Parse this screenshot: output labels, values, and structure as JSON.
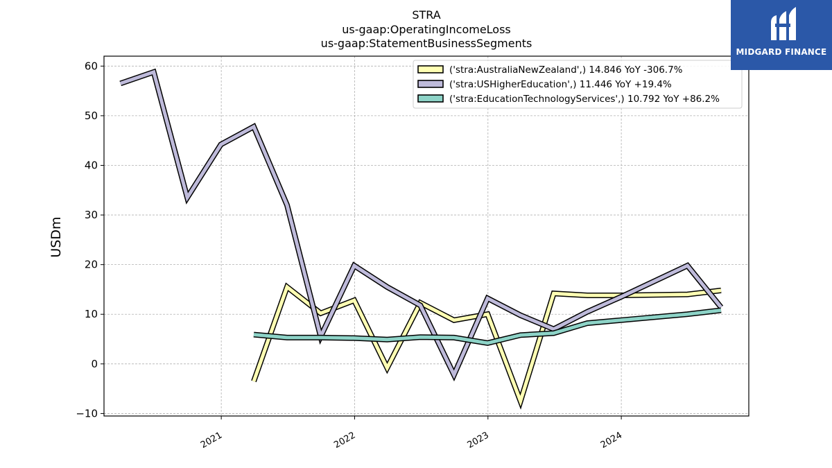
{
  "chart_data": {
    "type": "line",
    "title": [
      "STRA",
      "us-gaap:OperatingIncomeLoss",
      "us-gaap:StatementBusinessSegments"
    ],
    "ylabel": "USDm",
    "xlabel": "",
    "ylim": [
      -10.5,
      62
    ],
    "yticks": [
      -10,
      0,
      10,
      20,
      30,
      40,
      50,
      60
    ],
    "xlim": [
      "2020-02-15",
      "2024-12-15"
    ],
    "xticks": [
      {
        "date": "2021-01-01",
        "label": "2021"
      },
      {
        "date": "2022-01-01",
        "label": "2022"
      },
      {
        "date": "2023-01-01",
        "label": "2023"
      },
      {
        "date": "2024-01-01",
        "label": "2024"
      }
    ],
    "grid": true,
    "legend_position": "top-right",
    "series": [
      {
        "name": "('stra:AustraliaNewZealand',) 14.846 YoY -306.7%",
        "color": "#ffffb3",
        "points": [
          [
            "2021-03-31",
            -3.5
          ],
          [
            "2021-06-30",
            15.5
          ],
          [
            "2021-09-30",
            10.2
          ],
          [
            "2021-12-31",
            12.8
          ],
          [
            "2022-03-31",
            -0.8
          ],
          [
            "2022-06-30",
            12.3
          ],
          [
            "2022-09-30",
            8.8
          ],
          [
            "2022-12-31",
            10.0
          ],
          [
            "2023-03-31",
            -7.5
          ],
          [
            "2023-06-30",
            14.2
          ],
          [
            "2023-09-30",
            13.8
          ],
          [
            "2023-12-31",
            13.8
          ],
          [
            "2024-06-30",
            14.0
          ],
          [
            "2024-09-30",
            14.8
          ]
        ]
      },
      {
        "name": "('stra:USHigherEducation',) 11.446 YoY +19.4%",
        "color": "#bebada",
        "points": [
          [
            "2020-03-31",
            56.5
          ],
          [
            "2020-06-30",
            58.8
          ],
          [
            "2020-09-30",
            33.5
          ],
          [
            "2020-12-31",
            44.2
          ],
          [
            "2021-03-31",
            47.8
          ],
          [
            "2021-06-30",
            32.0
          ],
          [
            "2021-09-30",
            5.5
          ],
          [
            "2021-12-31",
            19.8
          ],
          [
            "2022-03-31",
            15.5
          ],
          [
            "2022-06-30",
            11.8
          ],
          [
            "2022-09-30",
            -2.2
          ],
          [
            "2022-12-31",
            13.2
          ],
          [
            "2023-03-31",
            9.8
          ],
          [
            "2023-06-30",
            7.0
          ],
          [
            "2023-09-30",
            10.5
          ],
          [
            "2023-12-31",
            13.5
          ],
          [
            "2024-06-30",
            19.8
          ],
          [
            "2024-09-30",
            11.4
          ]
        ]
      },
      {
        "name": "('stra:EducationTechnologyServices',) 10.792 YoY +86.2%",
        "color": "#8dd3c7",
        "points": [
          [
            "2021-03-31",
            5.9
          ],
          [
            "2021-06-30",
            5.3
          ],
          [
            "2021-09-30",
            5.3
          ],
          [
            "2021-12-31",
            5.2
          ],
          [
            "2022-03-31",
            4.9
          ],
          [
            "2022-06-30",
            5.4
          ],
          [
            "2022-09-30",
            5.3
          ],
          [
            "2022-12-31",
            4.2
          ],
          [
            "2023-03-31",
            5.8
          ],
          [
            "2023-06-30",
            6.2
          ],
          [
            "2023-09-30",
            8.2
          ],
          [
            "2023-12-31",
            8.8
          ],
          [
            "2024-06-30",
            10.0
          ],
          [
            "2024-09-30",
            10.8
          ]
        ]
      }
    ]
  },
  "logo": {
    "text": "MIDGARD FINANCE",
    "bg_color": "#2b58a8"
  }
}
